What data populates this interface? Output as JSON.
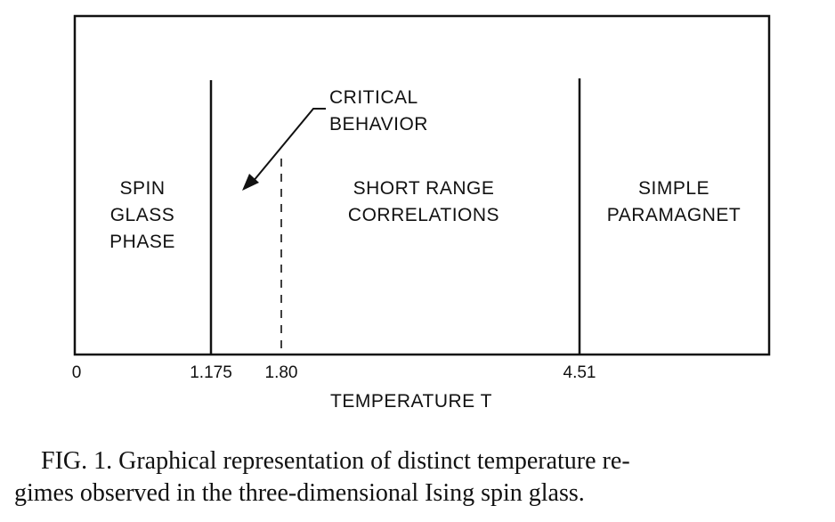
{
  "diagram": {
    "regions": [
      {
        "id": "spin-glass",
        "lines": [
          "SPIN",
          "GLASS",
          "PHASE"
        ]
      },
      {
        "id": "short-range",
        "lines": [
          "SHORT RANGE",
          "CORRELATIONS"
        ]
      },
      {
        "id": "paramagnet",
        "lines": [
          "SIMPLE",
          "PARAMAGNET"
        ]
      }
    ],
    "annotation": {
      "lines": [
        "CRITICAL",
        "BEHAVIOR"
      ]
    },
    "boundaries": [
      {
        "value": 1.175,
        "style": "solid"
      },
      {
        "value": 1.8,
        "style": "dashed"
      },
      {
        "value": 4.51,
        "style": "solid"
      }
    ],
    "ticks": [
      "0",
      "1.175",
      "1.80",
      "4.51"
    ],
    "axis_label": "TEMPERATURE T"
  },
  "caption": {
    "line1": "FIG. 1.  Graphical representation of distinct temperature re-",
    "line2": "gimes observed in the three-dimensional Ising spin glass."
  }
}
